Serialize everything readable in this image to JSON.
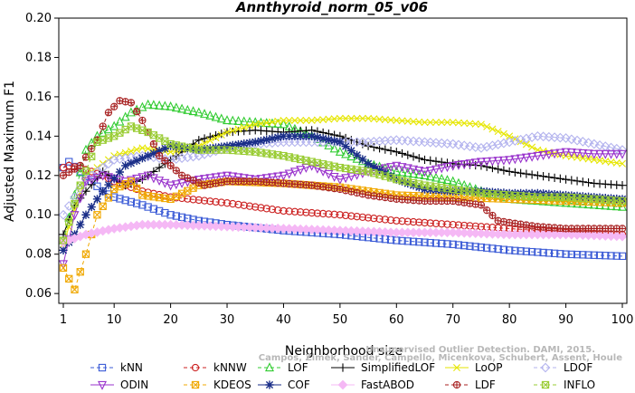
{
  "chart_data": {
    "type": "line",
    "title": "Annthyroid_norm_05_v06",
    "xlabel": "Neighborhood size",
    "ylabel": "Adjusted Maximum F1",
    "xlim": [
      1,
      100
    ],
    "ylim": [
      0.055,
      0.2
    ],
    "x_ticks": [
      1,
      10,
      20,
      30,
      40,
      50,
      60,
      70,
      80,
      90,
      100
    ],
    "y_ticks": [
      0.06,
      0.08,
      0.1,
      0.12,
      0.14,
      0.16,
      0.18,
      0.2
    ],
    "y_tick_labels": [
      "0.06",
      "0.08",
      "0.10",
      "0.12",
      "0.14",
      "0.16",
      "0.18",
      "0.20"
    ],
    "grid": false,
    "legend_position": "bottom",
    "credit_lines": [
      "Campos, Zimek, Sander, Campello, Micenkova, Schubert, Assent, Houle",
      "Unsupervised Outlier Detection. DAMI, 2015."
    ],
    "series": [
      {
        "name": "kNN",
        "color": "#3b5bd6",
        "marker": "square",
        "dash": "4,3",
        "points": [
          [
            1,
            0.124
          ],
          [
            2,
            0.127
          ],
          [
            4,
            0.122
          ],
          [
            6,
            0.117
          ],
          [
            8,
            0.112
          ],
          [
            10,
            0.109
          ],
          [
            15,
            0.105
          ],
          [
            20,
            0.1
          ],
          [
            25,
            0.097
          ],
          [
            30,
            0.095
          ],
          [
            40,
            0.092
          ],
          [
            50,
            0.09
          ],
          [
            60,
            0.087
          ],
          [
            70,
            0.085
          ],
          [
            80,
            0.082
          ],
          [
            90,
            0.08
          ],
          [
            100,
            0.079
          ]
        ]
      },
      {
        "name": "kNNW",
        "color": "#cc2222",
        "marker": "circle",
        "dash": "4,3",
        "points": [
          [
            1,
            0.124
          ],
          [
            2,
            0.125
          ],
          [
            5,
            0.123
          ],
          [
            8,
            0.12
          ],
          [
            10,
            0.117
          ],
          [
            15,
            0.112
          ],
          [
            20,
            0.109
          ],
          [
            30,
            0.106
          ],
          [
            40,
            0.102
          ],
          [
            50,
            0.1
          ],
          [
            60,
            0.097
          ],
          [
            70,
            0.095
          ],
          [
            80,
            0.093
          ],
          [
            90,
            0.091
          ],
          [
            100,
            0.09
          ]
        ]
      },
      {
        "name": "LOF",
        "color": "#33cc33",
        "marker": "triangle",
        "dash": "4,3",
        "points": [
          [
            1,
            0.087
          ],
          [
            3,
            0.11
          ],
          [
            5,
            0.133
          ],
          [
            7,
            0.14
          ],
          [
            10,
            0.145
          ],
          [
            13,
            0.152
          ],
          [
            16,
            0.156
          ],
          [
            20,
            0.155
          ],
          [
            25,
            0.152
          ],
          [
            30,
            0.148
          ],
          [
            35,
            0.147
          ],
          [
            40,
            0.146
          ],
          [
            45,
            0.14
          ],
          [
            50,
            0.132
          ],
          [
            55,
            0.126
          ],
          [
            60,
            0.122
          ],
          [
            65,
            0.12
          ],
          [
            70,
            0.117
          ],
          [
            75,
            0.112
          ],
          [
            80,
            0.108
          ],
          [
            85,
            0.107
          ],
          [
            90,
            0.106
          ],
          [
            95,
            0.105
          ],
          [
            100,
            0.104
          ]
        ]
      },
      {
        "name": "SimplifiedLOF",
        "color": "#000000",
        "marker": "plus",
        "dash": "",
        "points": [
          [
            1,
            0.09
          ],
          [
            3,
            0.105
          ],
          [
            5,
            0.112
          ],
          [
            8,
            0.122
          ],
          [
            12,
            0.115
          ],
          [
            15,
            0.118
          ],
          [
            20,
            0.128
          ],
          [
            25,
            0.138
          ],
          [
            30,
            0.142
          ],
          [
            35,
            0.143
          ],
          [
            40,
            0.142
          ],
          [
            45,
            0.143
          ],
          [
            50,
            0.14
          ],
          [
            55,
            0.135
          ],
          [
            60,
            0.132
          ],
          [
            65,
            0.128
          ],
          [
            70,
            0.126
          ],
          [
            75,
            0.125
          ],
          [
            80,
            0.122
          ],
          [
            85,
            0.12
          ],
          [
            90,
            0.118
          ],
          [
            95,
            0.116
          ],
          [
            100,
            0.115
          ]
        ]
      },
      {
        "name": "LoOP",
        "color": "#e6e600",
        "marker": "x",
        "dash": "",
        "points": [
          [
            1,
            0.085
          ],
          [
            5,
            0.12
          ],
          [
            10,
            0.13
          ],
          [
            15,
            0.134
          ],
          [
            20,
            0.132
          ],
          [
            25,
            0.135
          ],
          [
            30,
            0.142
          ],
          [
            35,
            0.146
          ],
          [
            40,
            0.148
          ],
          [
            45,
            0.148
          ],
          [
            50,
            0.149
          ],
          [
            55,
            0.149
          ],
          [
            60,
            0.148
          ],
          [
            65,
            0.147
          ],
          [
            70,
            0.147
          ],
          [
            75,
            0.146
          ],
          [
            80,
            0.14
          ],
          [
            85,
            0.133
          ],
          [
            90,
            0.13
          ],
          [
            95,
            0.128
          ],
          [
            100,
            0.126
          ]
        ]
      },
      {
        "name": "LDOF",
        "color": "#b3b3ee",
        "marker": "diamond",
        "dash": "4,3",
        "points": [
          [
            1,
            0.1
          ],
          [
            5,
            0.118
          ],
          [
            10,
            0.128
          ],
          [
            15,
            0.13
          ],
          [
            20,
            0.128
          ],
          [
            25,
            0.13
          ],
          [
            30,
            0.134
          ],
          [
            35,
            0.136
          ],
          [
            40,
            0.137
          ],
          [
            45,
            0.137
          ],
          [
            50,
            0.137
          ],
          [
            55,
            0.137
          ],
          [
            60,
            0.138
          ],
          [
            65,
            0.137
          ],
          [
            70,
            0.136
          ],
          [
            75,
            0.134
          ],
          [
            80,
            0.137
          ],
          [
            85,
            0.14
          ],
          [
            90,
            0.139
          ],
          [
            95,
            0.136
          ],
          [
            100,
            0.133
          ]
        ]
      },
      {
        "name": "ODIN",
        "color": "#9933cc",
        "marker": "triangle-down",
        "dash": "",
        "points": [
          [
            1,
            0.075
          ],
          [
            3,
            0.1
          ],
          [
            5,
            0.117
          ],
          [
            8,
            0.12
          ],
          [
            12,
            0.117
          ],
          [
            16,
            0.12
          ],
          [
            20,
            0.115
          ],
          [
            25,
            0.118
          ],
          [
            30,
            0.12
          ],
          [
            35,
            0.118
          ],
          [
            40,
            0.12
          ],
          [
            45,
            0.125
          ],
          [
            50,
            0.118
          ],
          [
            55,
            0.122
          ],
          [
            60,
            0.125
          ],
          [
            65,
            0.122
          ],
          [
            70,
            0.125
          ],
          [
            75,
            0.127
          ],
          [
            80,
            0.128
          ],
          [
            85,
            0.13
          ],
          [
            90,
            0.132
          ],
          [
            95,
            0.131
          ],
          [
            100,
            0.131
          ]
        ]
      },
      {
        "name": "KDEOS",
        "color": "#f0a800",
        "marker": "square-x",
        "dash": "4,3",
        "points": [
          [
            1,
            0.073
          ],
          [
            3,
            0.062
          ],
          [
            5,
            0.08
          ],
          [
            7,
            0.1
          ],
          [
            10,
            0.113
          ],
          [
            13,
            0.117
          ],
          [
            15,
            0.11
          ],
          [
            20,
            0.108
          ],
          [
            25,
            0.115
          ],
          [
            30,
            0.117
          ],
          [
            40,
            0.116
          ],
          [
            50,
            0.114
          ],
          [
            60,
            0.11
          ],
          [
            70,
            0.109
          ],
          [
            80,
            0.108
          ],
          [
            90,
            0.107
          ],
          [
            100,
            0.106
          ]
        ]
      },
      {
        "name": "COF",
        "color": "#1a2e88",
        "marker": "star",
        "dash": "",
        "points": [
          [
            1,
            0.082
          ],
          [
            3,
            0.09
          ],
          [
            5,
            0.1
          ],
          [
            8,
            0.112
          ],
          [
            12,
            0.125
          ],
          [
            16,
            0.13
          ],
          [
            20,
            0.135
          ],
          [
            25,
            0.133
          ],
          [
            30,
            0.135
          ],
          [
            35,
            0.137
          ],
          [
            40,
            0.14
          ],
          [
            45,
            0.14
          ],
          [
            50,
            0.137
          ],
          [
            55,
            0.126
          ],
          [
            60,
            0.118
          ],
          [
            65,
            0.113
          ],
          [
            70,
            0.112
          ],
          [
            75,
            0.112
          ],
          [
            80,
            0.111
          ],
          [
            85,
            0.111
          ],
          [
            90,
            0.11
          ],
          [
            95,
            0.109
          ],
          [
            100,
            0.108
          ]
        ]
      },
      {
        "name": "FastABOD",
        "color": "#f5b8f5",
        "marker": "diamond-filled",
        "dash": "",
        "points": [
          [
            1,
            0.086
          ],
          [
            5,
            0.09
          ],
          [
            10,
            0.093
          ],
          [
            15,
            0.095
          ],
          [
            20,
            0.095
          ],
          [
            30,
            0.094
          ],
          [
            40,
            0.093
          ],
          [
            50,
            0.092
          ],
          [
            60,
            0.091
          ],
          [
            70,
            0.091
          ],
          [
            80,
            0.09
          ],
          [
            90,
            0.09
          ],
          [
            100,
            0.089
          ]
        ]
      },
      {
        "name": "LDF",
        "color": "#a82222",
        "marker": "circle-plus",
        "dash": "4,3",
        "points": [
          [
            1,
            0.12
          ],
          [
            4,
            0.125
          ],
          [
            7,
            0.138
          ],
          [
            9,
            0.152
          ],
          [
            11,
            0.158
          ],
          [
            13,
            0.157
          ],
          [
            15,
            0.148
          ],
          [
            18,
            0.13
          ],
          [
            22,
            0.12
          ],
          [
            26,
            0.115
          ],
          [
            30,
            0.117
          ],
          [
            35,
            0.117
          ],
          [
            40,
            0.116
          ],
          [
            45,
            0.115
          ],
          [
            50,
            0.113
          ],
          [
            55,
            0.11
          ],
          [
            60,
            0.108
          ],
          [
            65,
            0.107
          ],
          [
            70,
            0.107
          ],
          [
            75,
            0.105
          ],
          [
            78,
            0.097
          ],
          [
            80,
            0.096
          ],
          [
            85,
            0.094
          ],
          [
            90,
            0.093
          ],
          [
            95,
            0.093
          ],
          [
            100,
            0.093
          ]
        ]
      },
      {
        "name": "INFLO",
        "color": "#99cc33",
        "marker": "square-x",
        "dash": "4,3",
        "points": [
          [
            1,
            0.087
          ],
          [
            4,
            0.115
          ],
          [
            7,
            0.137
          ],
          [
            10,
            0.14
          ],
          [
            13,
            0.145
          ],
          [
            16,
            0.142
          ],
          [
            20,
            0.136
          ],
          [
            25,
            0.133
          ],
          [
            30,
            0.133
          ],
          [
            35,
            0.132
          ],
          [
            40,
            0.13
          ],
          [
            45,
            0.127
          ],
          [
            50,
            0.124
          ],
          [
            55,
            0.122
          ],
          [
            60,
            0.118
          ],
          [
            65,
            0.115
          ],
          [
            70,
            0.113
          ],
          [
            75,
            0.111
          ],
          [
            80,
            0.11
          ],
          [
            85,
            0.109
          ],
          [
            90,
            0.109
          ],
          [
            95,
            0.108
          ],
          [
            100,
            0.107
          ]
        ]
      }
    ]
  }
}
